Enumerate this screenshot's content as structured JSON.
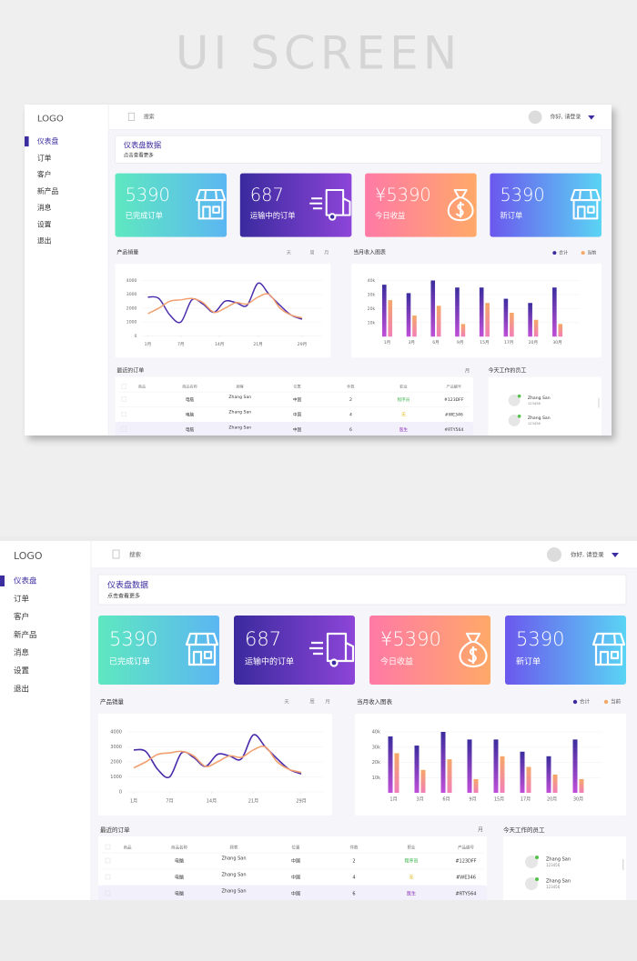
{
  "header": {
    "title": "UI SCREEN"
  },
  "dashboard": {
    "logo": "LOGO",
    "nav": [
      "仪表盘",
      "订单",
      "客户",
      "新产品",
      "消息",
      "设置",
      "退出"
    ],
    "search": "搜索",
    "greeting": "你好, 请登录",
    "banner": {
      "title": "仪表盘数据",
      "subtitle": "点击查看更多"
    },
    "cards": [
      {
        "value": "5390",
        "label": "已完成订单",
        "colors": [
          "#5ee8c0",
          "#5cb6f2"
        ]
      },
      {
        "value": "687",
        "label": "运输中的订单",
        "colors": [
          "#3a2a9e",
          "#8d45d8"
        ]
      },
      {
        "value": "¥5390",
        "label": "今日收益",
        "colors": [
          "#ff7aa6",
          "#ffa968"
        ]
      },
      {
        "value": "5390",
        "label": "新订单",
        "colors": [
          "#6b58ee",
          "#5ad4f4"
        ]
      }
    ],
    "charts": [
      {
        "type": "line",
        "title": "产品销量",
        "tabs": [
          "天",
          "周",
          "月"
        ],
        "x": [
          1,
          3,
          5,
          7,
          9,
          11,
          13,
          15,
          17,
          19,
          21,
          23,
          25,
          27,
          29
        ],
        "xlim": [
          1,
          29
        ],
        "xticks": [
          {
            "value": 1,
            "label": "1月"
          },
          {
            "value": 7,
            "label": "7月"
          },
          {
            "value": 14,
            "label": "14月"
          },
          {
            "value": 21,
            "label": "21月"
          },
          {
            "value": 29,
            "label": "29月"
          }
        ],
        "ylim": [
          0,
          4000
        ],
        "yticks": [
          0,
          1000,
          2000,
          3000,
          4000
        ],
        "grid": true,
        "series": [
          {
            "color": "#4a2bab",
            "values": [
              2800,
              2700,
              1500,
              1000,
              2600,
              2300,
              1700,
              2500,
              2400,
              2200,
              3800,
              3000,
              2200,
              1500,
              1200
            ]
          },
          {
            "color": "#f2a070",
            "values": [
              1600,
              2000,
              2500,
              2600,
              2700,
              2400,
              1700,
              2000,
              2400,
              2300,
              2800,
              3000,
              2000,
              1500,
              1300
            ]
          }
        ]
      },
      {
        "type": "bar",
        "title": "当月收入图表",
        "categories": [
          "1月",
          "3月",
          "6月",
          "9月",
          "15月",
          "17月",
          "20月",
          "30月"
        ],
        "ylim": [
          0,
          40000
        ],
        "yticks": [
          {
            "value": 10000,
            "label": "10k"
          },
          {
            "value": 20000,
            "label": "20k"
          },
          {
            "value": 30000,
            "label": "30k"
          },
          {
            "value": 40000,
            "label": "40k"
          }
        ],
        "grid": true,
        "series": [
          {
            "name": "合计",
            "color": "#3b2c9e",
            "values": [
              37000,
              31000,
              40000,
              35000,
              35000,
              27000,
              24000,
              35000
            ]
          },
          {
            "name": "当前",
            "color": "#f5a866",
            "values": [
              26000,
              15000,
              22000,
              9000,
              24000,
              17000,
              12000,
              9000
            ]
          }
        ]
      }
    ],
    "orders": {
      "title": "最近的订单",
      "period": "月",
      "columns": [
        "商品",
        "商品名称",
        "顾客",
        "位置",
        "件数",
        "职业",
        "产品编号"
      ],
      "rows": [
        {
          "product": "电脑",
          "customer": "Zhang San",
          "location": "中国",
          "qty": 2,
          "job": "程序员",
          "job_color": "#3cb44b",
          "code": "#123DFF"
        },
        {
          "product": "电脑",
          "customer": "Zhang San",
          "location": "中国",
          "qty": 4,
          "job": "无",
          "job_color": "#e0b000",
          "code": "#WE346"
        },
        {
          "product": "电脑",
          "customer": "Zhang San",
          "location": "中国",
          "qty": 6,
          "job": "医生",
          "job_color": "#8e2fb8",
          "code": "#RTY564"
        }
      ]
    },
    "staff": {
      "title": "今天工作的员工",
      "people": [
        {
          "name": "Zhang San",
          "id": "123456"
        },
        {
          "name": "Zhang San",
          "id": "123456"
        }
      ]
    }
  }
}
